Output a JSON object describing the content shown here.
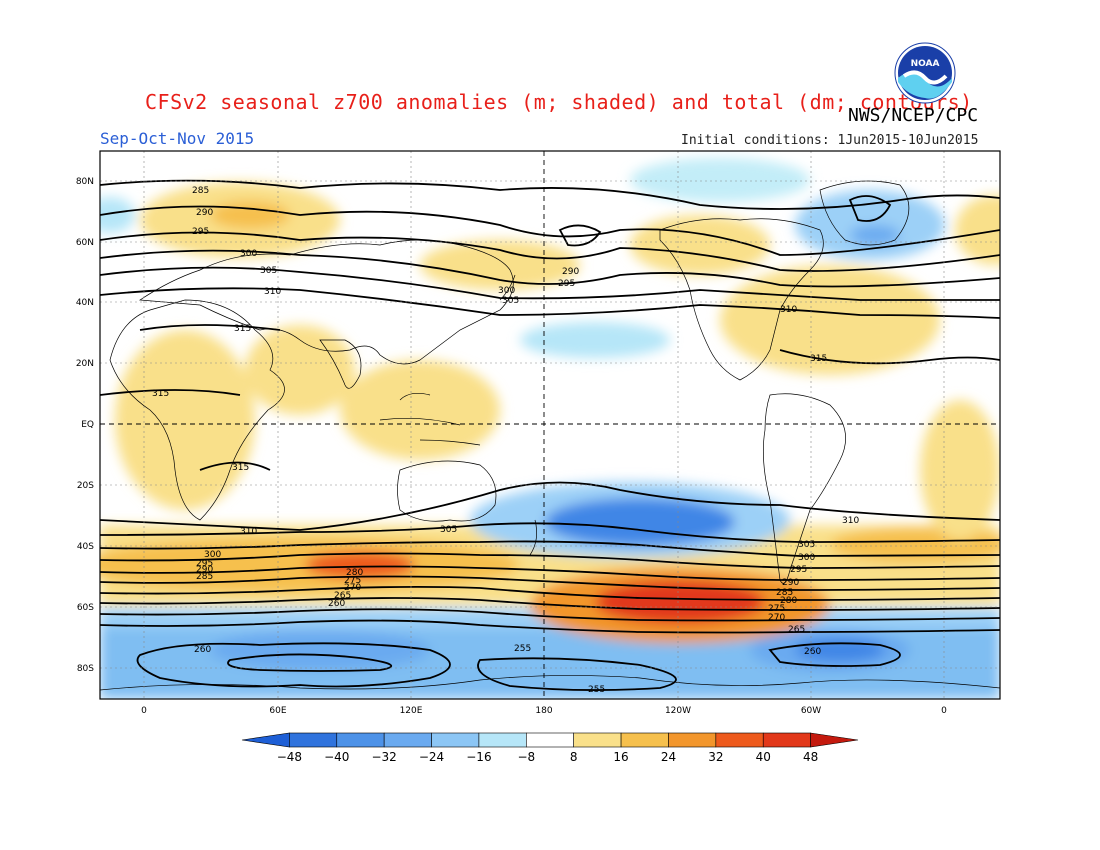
{
  "header": {
    "title": "CFSv2 seasonal z700 anomalies (m; shaded) and total (dm; contours)",
    "agency": "NWS/NCEP/CPC",
    "season": "Sep-Oct-Nov 2015",
    "initial_conditions": "Initial conditions: 1Jun2015-10Jun2015",
    "logo_text": "NOAA"
  },
  "map": {
    "lat_labels": [
      "80N",
      "60N",
      "40N",
      "20N",
      "EQ",
      "20S",
      "40S",
      "60S",
      "80S"
    ],
    "lon_labels": [
      "0",
      "60E",
      "120E",
      "180",
      "120W",
      "60W",
      "0"
    ],
    "contour_labels": [
      "285",
      "290",
      "295",
      "300",
      "305",
      "310",
      "315",
      "315",
      "315",
      "310",
      "305",
      "300",
      "295",
      "290",
      "285",
      "280",
      "275",
      "270",
      "265",
      "260",
      "260",
      "255",
      "255",
      "260",
      "265",
      "270",
      "275",
      "280",
      "285",
      "290",
      "295",
      "300",
      "305",
      "310",
      "315",
      "310",
      "300",
      "305",
      "295",
      "290"
    ],
    "colors": {
      "anom_neg_48": "#1e5fd6",
      "anom_neg_32": "#3f86e6",
      "anom_neg_24": "#6aaaf0",
      "anom_neg_16": "#9cd0f7",
      "anom_neg_8": "#c3edf8",
      "anom_pos_8": "#f9e08a",
      "anom_pos_16": "#f6c04d",
      "anom_pos_24": "#f2962c",
      "anom_pos_32": "#ee5a1c",
      "anom_pos_40": "#d6260e"
    }
  },
  "colorbar": {
    "labels": [
      "-48",
      "-40",
      "-32",
      "-24",
      "-16",
      "-8",
      "8",
      "16",
      "24",
      "32",
      "40",
      "48"
    ],
    "colors": [
      "#1e5fd6",
      "#2f73dd",
      "#4d92e8",
      "#6aaaf0",
      "#8cc6f5",
      "#b6e6f8",
      "#ffffff",
      "#f9e08a",
      "#f6c04d",
      "#f2962c",
      "#ee5a1c",
      "#e2381a",
      "#c41a0e"
    ]
  },
  "chart_data": {
    "type": "heatmap",
    "title": "CFSv2 seasonal z700 anomalies (m; shaded) and total (dm; contours)",
    "season": "Sep-Oct-Nov 2015",
    "anomaly_levels_m": [
      -48,
      -40,
      -32,
      -24,
      -16,
      -8,
      8,
      16,
      24,
      32,
      40,
      48
    ],
    "contour_levels_dm": [
      255,
      260,
      265,
      270,
      275,
      280,
      285,
      290,
      295,
      300,
      305,
      310,
      315
    ],
    "ylim": [
      -90,
      90
    ]
  }
}
